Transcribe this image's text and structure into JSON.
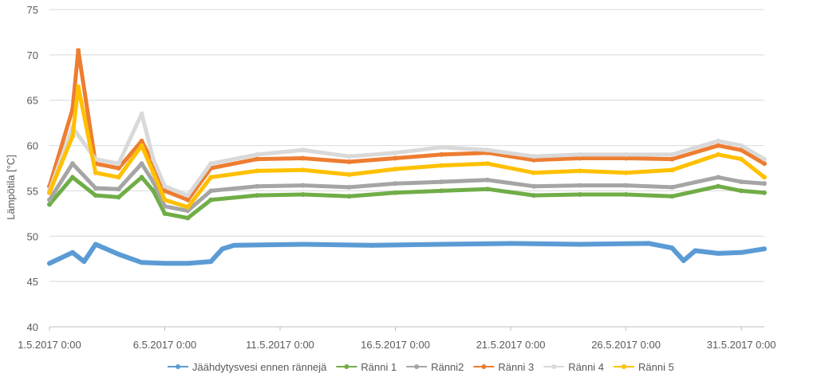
{
  "chart_data": {
    "type": "line",
    "title": "",
    "xlabel": "",
    "ylabel": "Lämpötila [°C]",
    "ylim": [
      40,
      75
    ],
    "yticks": [
      "40",
      "45",
      "50",
      "55",
      "60",
      "65",
      "70",
      "75"
    ],
    "x_range": [
      "1.5.2017 0:00",
      "1.6.2017 0:00"
    ],
    "xticks": [
      "1.5.2017 0:00",
      "6.5.2017 0:00",
      "11.5.2017 0:00",
      "16.5.2017 0:00",
      "21.5.2017 0:00",
      "26.5.2017 0:00",
      "31.5.2017 0:00"
    ],
    "grid": "horizontal",
    "legend_position": "bottom",
    "series": [
      {
        "name": "Jäähdytysvesi ennen rännejä",
        "color": "#5b9bd5",
        "points": [
          [
            "1.5.2017",
            47.0
          ],
          [
            "2.5.2017",
            48.2
          ],
          [
            "2.5.2017 12:00",
            47.2
          ],
          [
            "3.5.2017",
            49.1
          ],
          [
            "4.5.2017",
            48.0
          ],
          [
            "5.5.2017",
            47.1
          ],
          [
            "6.5.2017",
            47.0
          ],
          [
            "7.5.2017",
            47.0
          ],
          [
            "8.5.2017",
            47.2
          ],
          [
            "8.5.2017 12:00",
            48.6
          ],
          [
            "9.5.2017",
            49.0
          ],
          [
            "12.5.2017",
            49.1
          ],
          [
            "15.5.2017",
            49.0
          ],
          [
            "18.5.2017",
            49.1
          ],
          [
            "21.5.2017",
            49.2
          ],
          [
            "24.5.2017",
            49.1
          ],
          [
            "27.5.2017",
            49.2
          ],
          [
            "28.5.2017",
            48.7
          ],
          [
            "28.5.2017 12:00",
            47.3
          ],
          [
            "29.5.2017",
            48.4
          ],
          [
            "30.5.2017",
            48.1
          ],
          [
            "31.5.2017",
            48.2
          ],
          [
            "1.6.2017",
            48.6
          ]
        ]
      },
      {
        "name": "Ränni 1",
        "color": "#70ad47",
        "points": [
          [
            "1.5.2017",
            53.5
          ],
          [
            "2.5.2017",
            56.5
          ],
          [
            "3.5.2017",
            54.5
          ],
          [
            "4.5.2017",
            54.3
          ],
          [
            "5.5.2017",
            56.5
          ],
          [
            "5.5.2017 12:00",
            55.0
          ],
          [
            "6.5.2017",
            52.5
          ],
          [
            "7.5.2017",
            52.0
          ],
          [
            "8.5.2017",
            54.0
          ],
          [
            "10.5.2017",
            54.5
          ],
          [
            "12.5.2017",
            54.6
          ],
          [
            "14.5.2017",
            54.4
          ],
          [
            "16.5.2017",
            54.8
          ],
          [
            "18.5.2017",
            55.0
          ],
          [
            "20.5.2017",
            55.2
          ],
          [
            "22.5.2017",
            54.5
          ],
          [
            "24.5.2017",
            54.6
          ],
          [
            "26.5.2017",
            54.6
          ],
          [
            "28.5.2017",
            54.4
          ],
          [
            "30.5.2017",
            55.5
          ],
          [
            "31.5.2017",
            55.0
          ],
          [
            "1.6.2017",
            54.8
          ]
        ]
      },
      {
        "name": "Ränni2",
        "color": "#a5a5a5",
        "points": [
          [
            "1.5.2017",
            54.0
          ],
          [
            "2.5.2017",
            58.0
          ],
          [
            "3.5.2017",
            55.3
          ],
          [
            "4.5.2017",
            55.2
          ],
          [
            "5.5.2017",
            58.0
          ],
          [
            "5.5.2017 12:00",
            56.0
          ],
          [
            "6.5.2017",
            53.3
          ],
          [
            "7.5.2017",
            52.8
          ],
          [
            "8.5.2017",
            55.0
          ],
          [
            "10.5.2017",
            55.5
          ],
          [
            "12.5.2017",
            55.6
          ],
          [
            "14.5.2017",
            55.4
          ],
          [
            "16.5.2017",
            55.8
          ],
          [
            "18.5.2017",
            56.0
          ],
          [
            "20.5.2017",
            56.2
          ],
          [
            "22.5.2017",
            55.5
          ],
          [
            "24.5.2017",
            55.6
          ],
          [
            "26.5.2017",
            55.6
          ],
          [
            "28.5.2017",
            55.4
          ],
          [
            "30.5.2017",
            56.5
          ],
          [
            "31.5.2017",
            56.0
          ],
          [
            "1.6.2017",
            55.8
          ]
        ]
      },
      {
        "name": "Ränni 3",
        "color": "#ed7d31",
        "points": [
          [
            "1.5.2017",
            55.5
          ],
          [
            "2.5.2017",
            64.0
          ],
          [
            "2.5.2017 6:00",
            70.5
          ],
          [
            "3.5.2017",
            58.0
          ],
          [
            "4.5.2017",
            57.5
          ],
          [
            "5.5.2017",
            60.5
          ],
          [
            "5.5.2017 12:00",
            58.0
          ],
          [
            "6.5.2017",
            55.0
          ],
          [
            "7.5.2017",
            54.0
          ],
          [
            "8.5.2017",
            57.5
          ],
          [
            "10.5.2017",
            58.5
          ],
          [
            "12.5.2017",
            58.6
          ],
          [
            "14.5.2017",
            58.2
          ],
          [
            "16.5.2017",
            58.6
          ],
          [
            "18.5.2017",
            59.0
          ],
          [
            "20.5.2017",
            59.2
          ],
          [
            "22.5.2017",
            58.4
          ],
          [
            "24.5.2017",
            58.6
          ],
          [
            "26.5.2017",
            58.6
          ],
          [
            "28.5.2017",
            58.5
          ],
          [
            "30.5.2017",
            60.0
          ],
          [
            "31.5.2017",
            59.5
          ],
          [
            "1.6.2017",
            58.0
          ]
        ]
      },
      {
        "name": "Ränni 4",
        "color": "#d9d9d9",
        "points": [
          [
            "1.5.2017",
            55.0
          ],
          [
            "2.5.2017",
            62.0
          ],
          [
            "3.5.2017",
            58.5
          ],
          [
            "4.5.2017",
            58.0
          ],
          [
            "5.5.2017",
            63.5
          ],
          [
            "5.5.2017 12:00",
            58.5
          ],
          [
            "6.5.2017",
            55.5
          ],
          [
            "7.5.2017",
            54.5
          ],
          [
            "8.5.2017",
            58.0
          ],
          [
            "10.5.2017",
            59.0
          ],
          [
            "12.5.2017",
            59.5
          ],
          [
            "14.5.2017",
            58.8
          ],
          [
            "16.5.2017",
            59.2
          ],
          [
            "18.5.2017",
            59.8
          ],
          [
            "20.5.2017",
            59.5
          ],
          [
            "22.5.2017",
            58.8
          ],
          [
            "24.5.2017",
            59.0
          ],
          [
            "26.5.2017",
            59.0
          ],
          [
            "28.5.2017",
            59.0
          ],
          [
            "30.5.2017",
            60.5
          ],
          [
            "31.5.2017",
            60.0
          ],
          [
            "1.6.2017",
            58.5
          ]
        ]
      },
      {
        "name": "Ränni 5",
        "color": "#ffc000",
        "points": [
          [
            "1.5.2017",
            54.8
          ],
          [
            "2.5.2017",
            61.0
          ],
          [
            "2.5.2017 6:00",
            66.5
          ],
          [
            "3.5.2017",
            57.0
          ],
          [
            "4.5.2017",
            56.5
          ],
          [
            "5.5.2017",
            60.0
          ],
          [
            "5.5.2017 12:00",
            57.0
          ],
          [
            "6.5.2017",
            54.0
          ],
          [
            "7.5.2017",
            53.2
          ],
          [
            "8.5.2017",
            56.5
          ],
          [
            "10.5.2017",
            57.2
          ],
          [
            "12.5.2017",
            57.3
          ],
          [
            "14.5.2017",
            56.8
          ],
          [
            "16.5.2017",
            57.4
          ],
          [
            "18.5.2017",
            57.8
          ],
          [
            "20.5.2017",
            58.0
          ],
          [
            "22.5.2017",
            57.0
          ],
          [
            "24.5.2017",
            57.2
          ],
          [
            "26.5.2017",
            57.0
          ],
          [
            "28.5.2017",
            57.3
          ],
          [
            "30.5.2017",
            59.0
          ],
          [
            "31.5.2017",
            58.5
          ],
          [
            "1.6.2017",
            56.5
          ]
        ]
      }
    ]
  }
}
